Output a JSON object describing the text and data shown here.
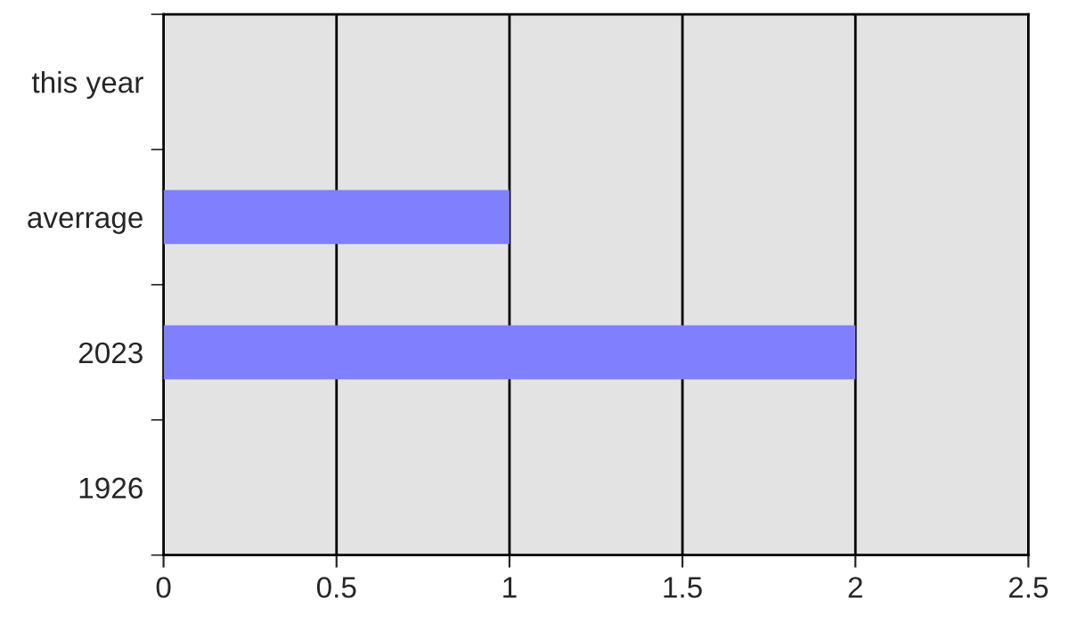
{
  "chart_data": {
    "type": "bar",
    "orientation": "horizontal",
    "categories": [
      "this year",
      "averrage",
      "2023",
      "1926"
    ],
    "values": [
      0,
      1,
      2,
      0
    ],
    "color": "#8080ff",
    "xlim": [
      0,
      2.5
    ],
    "xticks": [
      0,
      0.5,
      1,
      1.5,
      2,
      2.5
    ],
    "grid": "x",
    "legend": false
  }
}
